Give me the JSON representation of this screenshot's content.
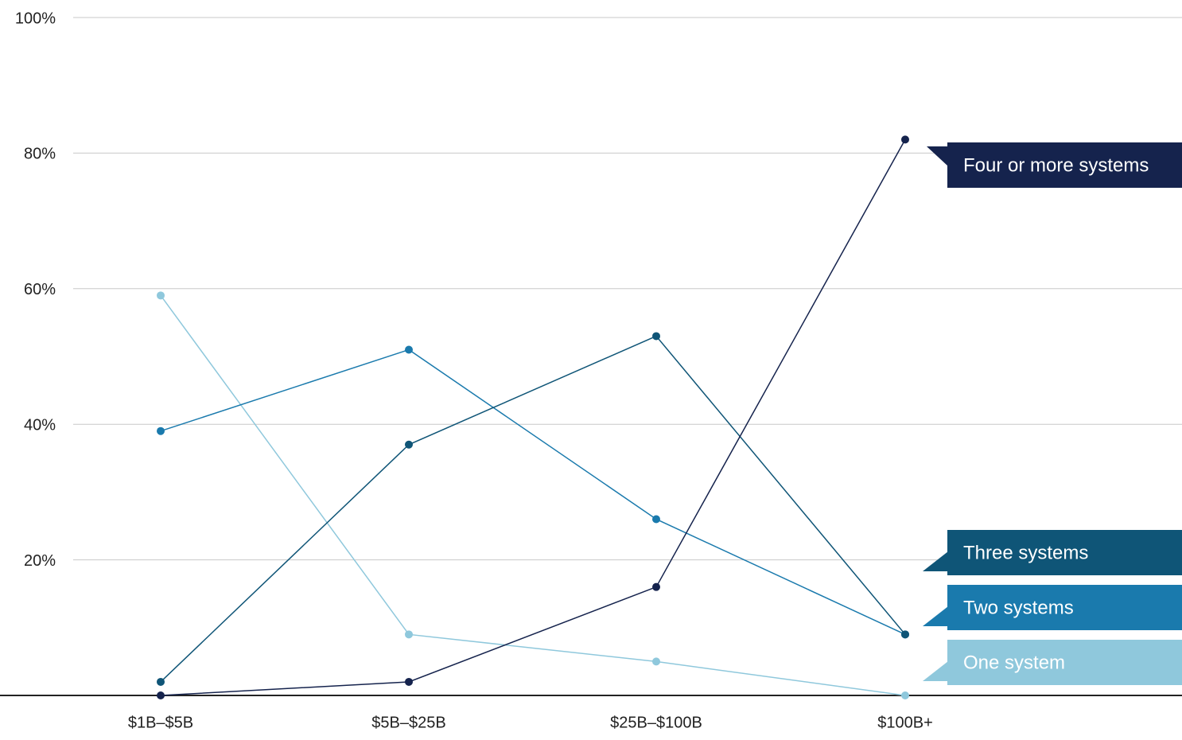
{
  "chart_data": {
    "type": "line",
    "categories": [
      "$1B–$5B",
      "$5B–$25B",
      "$25B–$100B",
      "$100B+"
    ],
    "series": [
      {
        "name": "One system",
        "color": "#8fc8dc",
        "values": [
          59,
          9,
          5,
          0
        ]
      },
      {
        "name": "Two systems",
        "color": "#1a7aad",
        "values": [
          39,
          51,
          26,
          9
        ]
      },
      {
        "name": "Three systems",
        "color": "#0f5577",
        "values": [
          2,
          37,
          53,
          9
        ]
      },
      {
        "name": "Four or more systems",
        "color": "#15234d",
        "values": [
          0,
          2,
          16,
          82
        ]
      }
    ],
    "ylim": [
      0,
      100
    ],
    "yticks": [
      {
        "value": 20,
        "label": "20%"
      },
      {
        "value": 40,
        "label": "40%"
      },
      {
        "value": 60,
        "label": "60%"
      },
      {
        "value": 80,
        "label": "80%"
      },
      {
        "value": 100,
        "label": "100%"
      }
    ],
    "grid": true
  }
}
